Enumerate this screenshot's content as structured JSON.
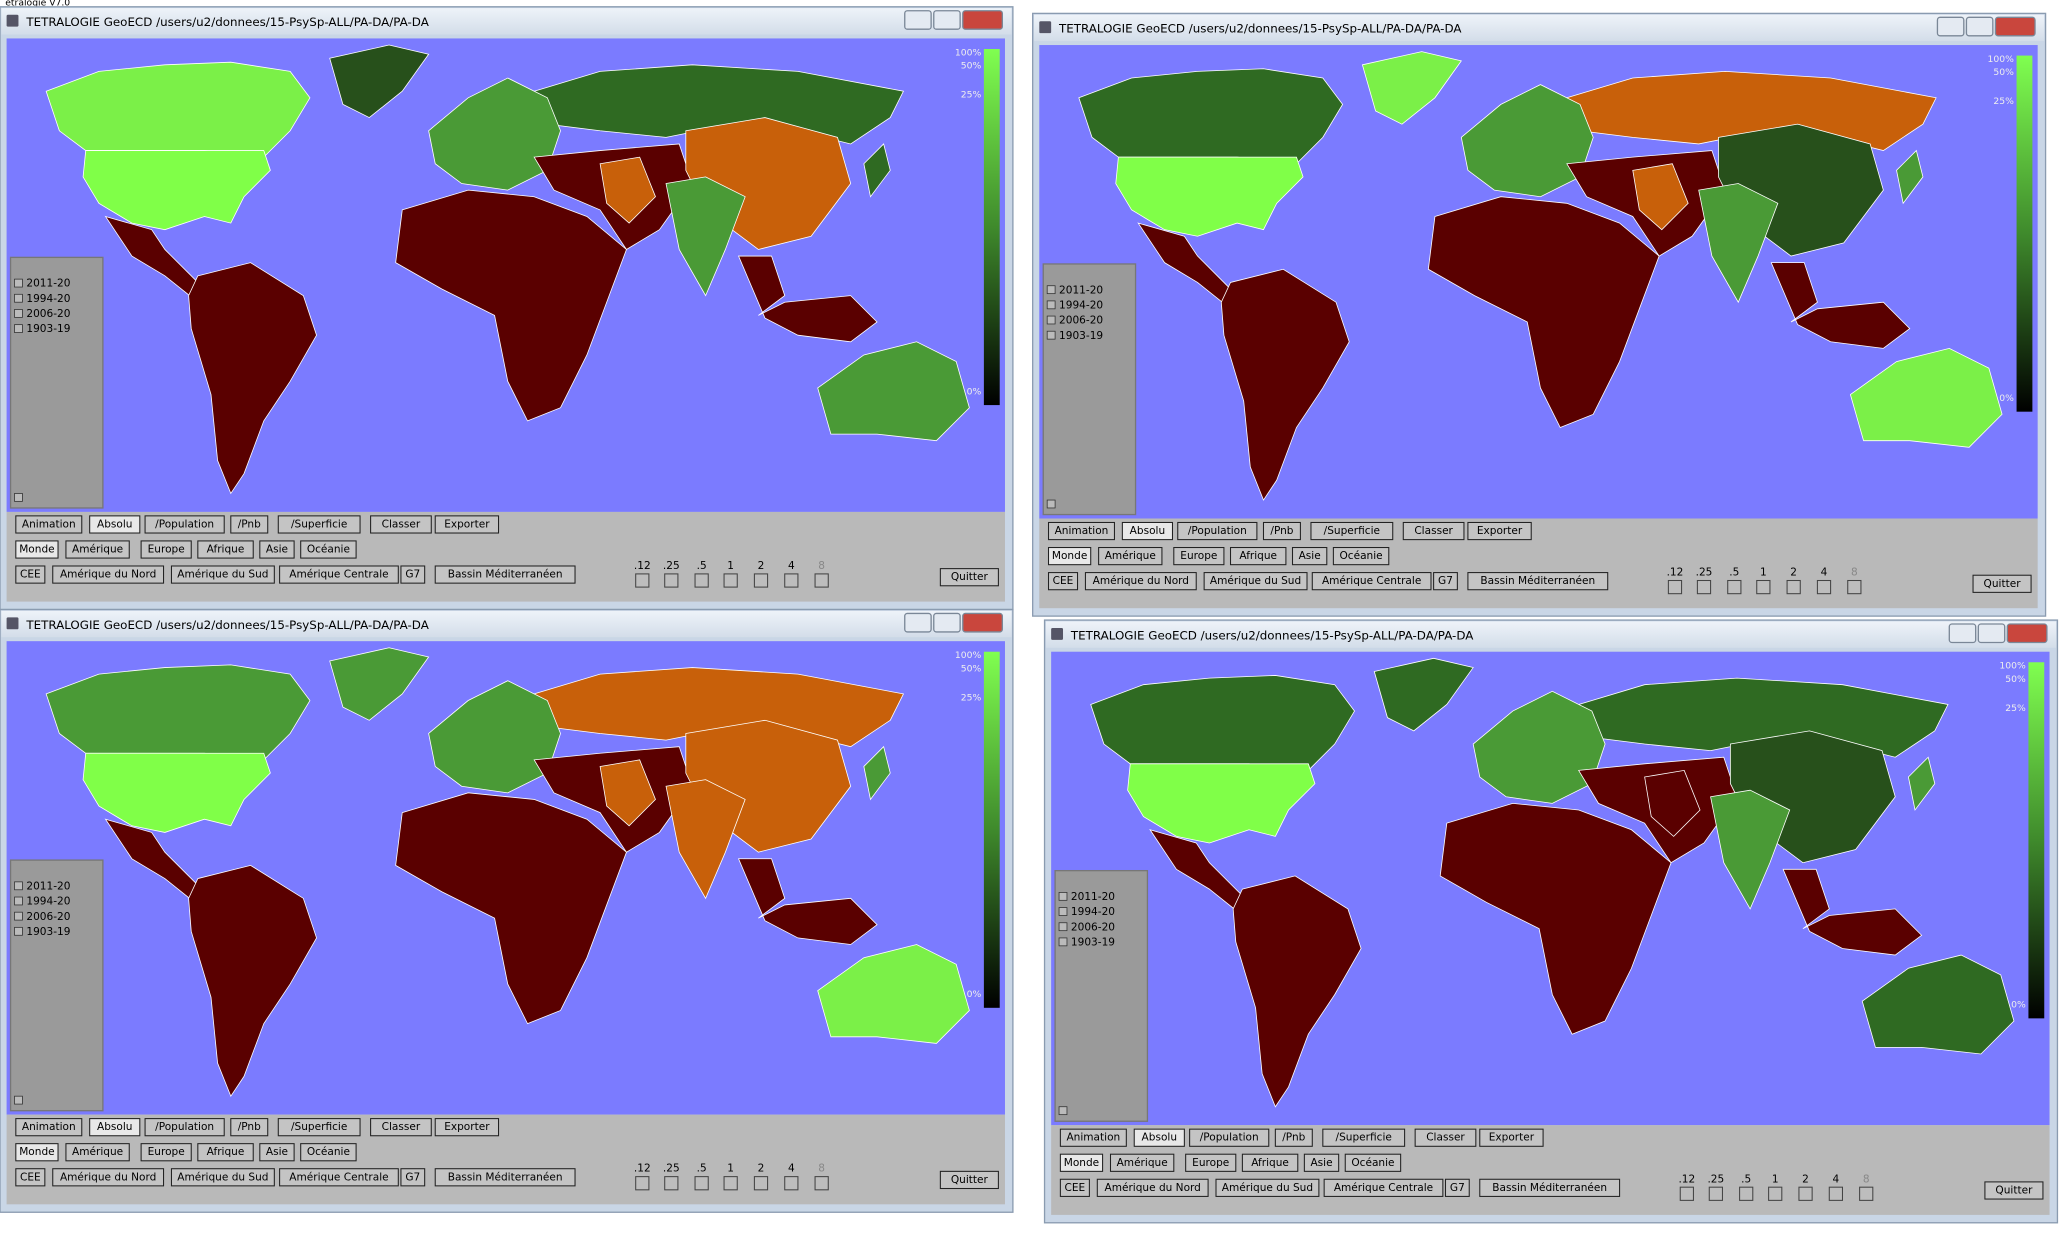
{
  "app_title": "etralogie V7.0",
  "windows": [
    {
      "title": "TETRALOGIE GeoECD  /users/u2/donnees/15-PsySp-ALL/PA-DA/PA-DA"
    },
    {
      "title": "TETRALOGIE GeoECD  /users/u2/donnees/15-PsySp-ALL/PA-DA/PA-DA"
    },
    {
      "title": "TETRALOGIE GeoECD  /users/u2/donnees/15-PsySp-ALL/PA-DA/PA-DA"
    },
    {
      "title": "TETRALOGIE GeoECD  /users/u2/donnees/15-PsySp-ALL/PA-DA/PA-DA"
    }
  ],
  "legend": [
    "2011-20",
    "1994-20",
    "2006-20",
    "1903-19"
  ],
  "color_scale": [
    "100%",
    "50%",
    "25%",
    "0%"
  ],
  "buttons": {
    "row1": [
      "Animation",
      "Absolu",
      "/Population",
      "/Pnb",
      "/Superficie",
      "Classer",
      "Exporter"
    ],
    "row2": [
      "Monde",
      "Amérique",
      "Europe",
      "Afrique",
      "Asie",
      "Océanie"
    ],
    "row3": [
      "CEE",
      "Amérique du Nord",
      "Amérique du Sud",
      "Amérique Centrale",
      "G7",
      "Bassin Méditerranéen"
    ]
  },
  "scale_labels": [
    ".12",
    ".25",
    ".5",
    "1",
    "2",
    "4",
    "8"
  ],
  "quit": "Quitter"
}
